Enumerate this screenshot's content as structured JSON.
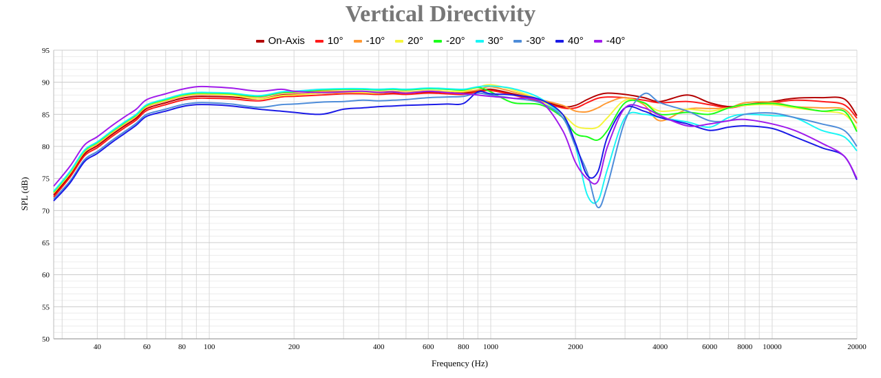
{
  "chart_data": {
    "type": "line",
    "title": "Vertical Directivity",
    "xlabel": "Frequency (Hz)",
    "ylabel": "SPL (dB)",
    "xscale": "log",
    "xlim": [
      28,
      20000
    ],
    "ylim": [
      50,
      95
    ],
    "grid": true,
    "legend_position": "top-center",
    "x_ticks": [
      40,
      60,
      80,
      100,
      200,
      400,
      600,
      800,
      1000,
      2000,
      4000,
      6000,
      8000,
      10000,
      20000
    ],
    "y_ticks": [
      50,
      55,
      60,
      65,
      70,
      75,
      80,
      85,
      90,
      95
    ],
    "x": [
      28,
      32,
      36,
      40,
      45,
      50,
      55,
      60,
      70,
      80,
      90,
      100,
      120,
      150,
      180,
      200,
      250,
      300,
      350,
      400,
      450,
      500,
      600,
      700,
      800,
      900,
      1000,
      1200,
      1500,
      1800,
      2000,
      2200,
      2400,
      2600,
      3000,
      3500,
      4000,
      5000,
      6000,
      7000,
      8000,
      10000,
      12000,
      15000,
      18000,
      20000
    ],
    "series": [
      {
        "name": "On-Axis",
        "color": "#b30000",
        "values": [
          72.4,
          75.5,
          78.8,
          80.1,
          81.8,
          83.2,
          84.4,
          85.9,
          86.8,
          87.5,
          87.8,
          87.8,
          87.7,
          87.4,
          88.0,
          88.1,
          88.3,
          88.4,
          88.4,
          88.3,
          88.4,
          88.3,
          88.5,
          88.4,
          88.3,
          88.6,
          88.9,
          88.2,
          87.2,
          86.2,
          86.4,
          87.3,
          88.0,
          88.3,
          88.1,
          87.6,
          87.0,
          88.0,
          86.8,
          86.2,
          86.5,
          87.0,
          87.5,
          87.6,
          87.4,
          84.8
        ]
      },
      {
        "name": "10°",
        "color": "#ff1a1a",
        "values": [
          72.1,
          75.2,
          78.5,
          79.8,
          81.5,
          82.9,
          84.1,
          85.6,
          86.5,
          87.2,
          87.5,
          87.5,
          87.4,
          87.1,
          87.7,
          87.8,
          88.0,
          88.2,
          88.2,
          88.1,
          88.2,
          88.1,
          88.3,
          88.2,
          88.1,
          88.5,
          88.7,
          88.0,
          87.0,
          86.0,
          86.0,
          86.8,
          87.5,
          87.7,
          87.6,
          87.2,
          86.8,
          87.0,
          86.5,
          86.0,
          86.4,
          86.8,
          87.2,
          87.0,
          86.5,
          84.4
        ]
      },
      {
        "name": "-10°",
        "color": "#ff9933",
        "values": [
          72.7,
          75.8,
          79.1,
          80.4,
          82.1,
          83.5,
          84.7,
          86.2,
          87.1,
          87.8,
          88.1,
          88.1,
          88.0,
          87.7,
          88.3,
          88.4,
          88.6,
          88.6,
          88.6,
          88.5,
          88.6,
          88.5,
          88.7,
          88.6,
          88.5,
          88.8,
          89.3,
          88.5,
          87.3,
          86.4,
          85.5,
          85.4,
          86.0,
          86.8,
          87.6,
          86.5,
          84.0,
          85.8,
          85.9,
          86.0,
          86.8,
          86.9,
          86.2,
          86.0,
          85.8,
          83.6
        ]
      },
      {
        "name": "20°",
        "color": "#f5f53d",
        "values": [
          72.8,
          75.8,
          79.2,
          80.5,
          82.2,
          83.6,
          84.8,
          86.3,
          87.2,
          87.9,
          88.2,
          88.2,
          88.0,
          87.4,
          87.9,
          88.0,
          88.3,
          88.4,
          88.4,
          88.3,
          88.5,
          88.4,
          88.7,
          88.6,
          88.6,
          89.2,
          89.6,
          88.8,
          87.2,
          85.0,
          83.2,
          82.8,
          83.0,
          84.5,
          87.2,
          86.8,
          85.5,
          85.8,
          85.5,
          86.0,
          86.4,
          86.5,
          86.0,
          85.5,
          85.0,
          82.8
        ]
      },
      {
        "name": "-20°",
        "color": "#1aff1a",
        "values": [
          72.9,
          76.0,
          79.3,
          80.6,
          82.3,
          83.7,
          84.9,
          86.4,
          87.3,
          88.0,
          88.3,
          88.3,
          88.2,
          87.8,
          88.4,
          88.5,
          88.8,
          88.9,
          88.9,
          88.8,
          88.9,
          88.8,
          89.0,
          88.9,
          88.8,
          89.2,
          88.5,
          86.8,
          86.5,
          84.5,
          82.0,
          81.5,
          81.0,
          82.5,
          86.8,
          86.8,
          85.0,
          85.3,
          85.0,
          86.0,
          86.5,
          86.7,
          86.2,
          85.5,
          85.5,
          82.3
        ]
      },
      {
        "name": "30°",
        "color": "#1af5f5",
        "values": [
          73.0,
          76.1,
          79.4,
          80.7,
          82.4,
          83.8,
          85.0,
          86.5,
          87.4,
          88.1,
          88.4,
          88.4,
          88.3,
          87.9,
          88.5,
          88.6,
          88.9,
          89.0,
          89.0,
          88.9,
          89.0,
          88.9,
          89.1,
          89.0,
          88.9,
          89.3,
          89.4,
          89.0,
          87.5,
          84.5,
          80.0,
          72.5,
          71.5,
          76.5,
          84.5,
          85.0,
          84.5,
          83.8,
          83.0,
          84.5,
          85.0,
          84.8,
          84.5,
          82.5,
          81.5,
          79.3
        ]
      },
      {
        "name": "-30°",
        "color": "#4d8cd9",
        "values": [
          71.8,
          74.6,
          77.9,
          79.2,
          80.9,
          82.3,
          83.6,
          85.0,
          85.8,
          86.5,
          86.8,
          86.8,
          86.6,
          86.1,
          86.5,
          86.6,
          86.9,
          87.0,
          87.2,
          87.1,
          87.2,
          87.3,
          87.6,
          87.7,
          87.8,
          88.3,
          88.0,
          87.5,
          86.8,
          84.5,
          80.0,
          76.0,
          70.5,
          74.0,
          84.0,
          88.2,
          86.8,
          85.5,
          84.0,
          84.0,
          85.0,
          85.2,
          84.5,
          83.5,
          82.5,
          80.0
        ]
      },
      {
        "name": "40°",
        "color": "#1a1ae6",
        "values": [
          71.5,
          74.3,
          77.6,
          78.9,
          80.6,
          82.0,
          83.3,
          84.7,
          85.5,
          86.2,
          86.5,
          86.5,
          86.3,
          85.8,
          85.5,
          85.3,
          85.0,
          85.8,
          86.0,
          86.2,
          86.3,
          86.4,
          86.5,
          86.6,
          86.7,
          88.5,
          88.2,
          88.0,
          87.3,
          85.0,
          80.5,
          75.5,
          76.0,
          81.5,
          86.0,
          85.5,
          84.5,
          83.5,
          82.5,
          83.0,
          83.2,
          82.8,
          81.5,
          79.8,
          78.5,
          74.8
        ]
      },
      {
        "name": "-40°",
        "color": "#a01aeb",
        "values": [
          73.8,
          76.9,
          80.2,
          81.5,
          83.2,
          84.6,
          85.8,
          87.3,
          88.2,
          88.9,
          89.3,
          89.3,
          89.1,
          88.6,
          88.9,
          88.6,
          88.4,
          88.5,
          88.6,
          88.4,
          88.5,
          88.3,
          88.6,
          88.4,
          88.2,
          88.0,
          87.8,
          87.5,
          87.0,
          82.5,
          77.5,
          75.0,
          74.5,
          80.0,
          86.0,
          86.0,
          84.8,
          83.2,
          83.5,
          84.0,
          84.2,
          83.5,
          82.5,
          80.5,
          78.5,
          75.0
        ]
      }
    ]
  }
}
